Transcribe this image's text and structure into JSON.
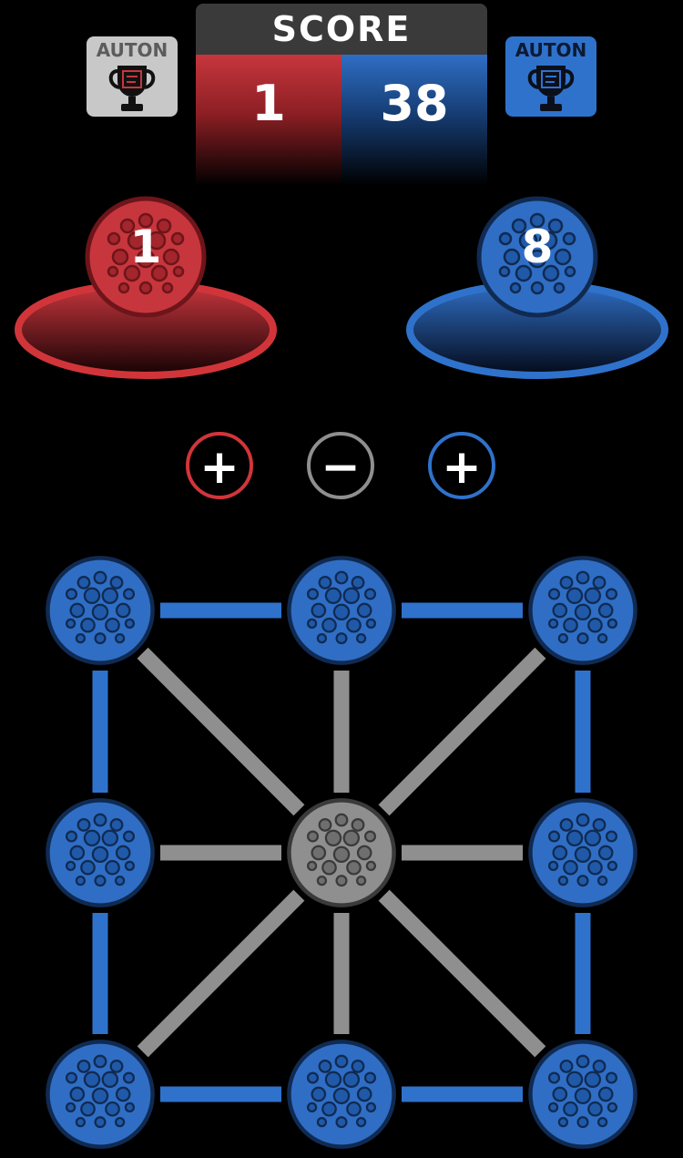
{
  "header": {
    "score_title": "SCORE",
    "red_score": "1",
    "blue_score": "38"
  },
  "auton": {
    "red_label": "AUTON",
    "blue_label": "AUTON",
    "red_state": "inactive",
    "blue_state": "active"
  },
  "stands": {
    "red_count": "1",
    "blue_count": "8"
  },
  "controls": {
    "red_plus": "+",
    "minus": "−",
    "blue_plus": "+"
  },
  "colors": {
    "red": "#d1353a",
    "blue": "#2f72cc",
    "neutral": "#8f8f8f",
    "background": "#000000"
  },
  "field": {
    "balls": [
      {
        "id": "top-left",
        "color": "blue"
      },
      {
        "id": "top-center",
        "color": "blue"
      },
      {
        "id": "top-right",
        "color": "blue"
      },
      {
        "id": "middle-left",
        "color": "blue"
      },
      {
        "id": "center",
        "color": "neutral"
      },
      {
        "id": "middle-right",
        "color": "blue"
      },
      {
        "id": "bottom-left",
        "color": "blue"
      },
      {
        "id": "bottom-center",
        "color": "blue"
      },
      {
        "id": "bottom-right",
        "color": "blue"
      }
    ],
    "links": [
      {
        "from": "top-left",
        "to": "top-center",
        "color": "blue"
      },
      {
        "from": "top-center",
        "to": "top-right",
        "color": "blue"
      },
      {
        "from": "bottom-left",
        "to": "bottom-center",
        "color": "blue"
      },
      {
        "from": "bottom-center",
        "to": "bottom-right",
        "color": "blue"
      },
      {
        "from": "top-left",
        "to": "middle-left",
        "color": "blue"
      },
      {
        "from": "middle-left",
        "to": "bottom-left",
        "color": "blue"
      },
      {
        "from": "top-right",
        "to": "middle-right",
        "color": "blue"
      },
      {
        "from": "middle-right",
        "to": "bottom-right",
        "color": "blue"
      },
      {
        "from": "middle-left",
        "to": "center",
        "color": "neutral"
      },
      {
        "from": "center",
        "to": "middle-right",
        "color": "neutral"
      },
      {
        "from": "top-center",
        "to": "center",
        "color": "neutral"
      },
      {
        "from": "center",
        "to": "bottom-center",
        "color": "neutral"
      },
      {
        "from": "top-left",
        "to": "center",
        "color": "neutral"
      },
      {
        "from": "top-right",
        "to": "center",
        "color": "neutral"
      },
      {
        "from": "bottom-left",
        "to": "center",
        "color": "neutral"
      },
      {
        "from": "bottom-right",
        "to": "center",
        "color": "neutral"
      }
    ]
  }
}
